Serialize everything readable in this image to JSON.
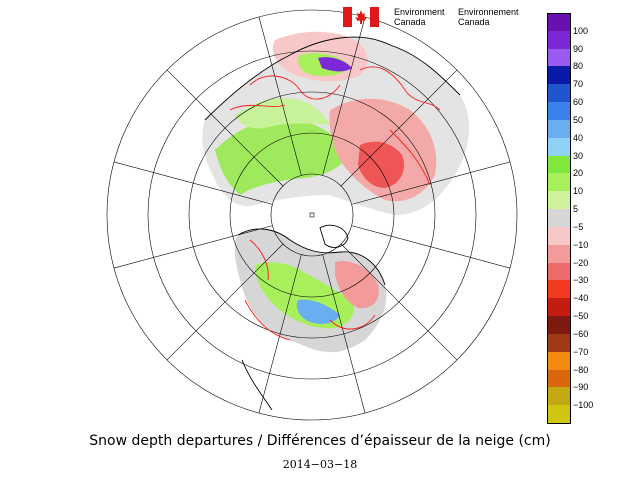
{
  "header": {
    "org_en_line1": "Environment",
    "org_en_line2": "Canada",
    "org_fr_line1": "Environnement",
    "org_fr_line2": "Canada",
    "flag_icon": "canada-flag-icon"
  },
  "legend": {
    "entries": [
      {
        "label": "100",
        "color": "#6a0fb0"
      },
      {
        "label": "90",
        "color": "#7c28d6"
      },
      {
        "label": "80",
        "color": "#9a5cf0"
      },
      {
        "label": "70",
        "color": "#0a1aa8"
      },
      {
        "label": "60",
        "color": "#1f55cf"
      },
      {
        "label": "50",
        "color": "#3b82ea"
      },
      {
        "label": "40",
        "color": "#6aaef2"
      },
      {
        "label": "30",
        "color": "#8fd2f6"
      },
      {
        "label": "20",
        "color": "#7fe83a"
      },
      {
        "label": "10",
        "color": "#a8ef5c"
      },
      {
        "label": "5",
        "color": "#d0f29a"
      },
      {
        "label": "−5",
        "color": "#d6d6d6"
      },
      {
        "label": "−10",
        "color": "#f8c8c8"
      },
      {
        "label": "−20",
        "color": "#f39a9a"
      },
      {
        "label": "−30",
        "color": "#ee6b6b"
      },
      {
        "label": "−40",
        "color": "#f23a1e"
      },
      {
        "label": "−50",
        "color": "#c41d10"
      },
      {
        "label": "−60",
        "color": "#7c1a10"
      },
      {
        "label": "−70",
        "color": "#a03a16"
      },
      {
        "label": "−80",
        "color": "#f08a10"
      },
      {
        "label": "−90",
        "color": "#d8680a"
      },
      {
        "label": "−100",
        "color": "#c2a812"
      }
    ],
    "bottom_color": "#d2c510"
  },
  "caption": {
    "title": "Snow depth departures / Différences d’épaisseur de la neige  (cm)",
    "date": "2014−03−18"
  },
  "colors": {
    "grid": "#000000",
    "coast": "#000000",
    "contour_red": "#ff1a1a",
    "land_gray": "#cfcfcf"
  }
}
